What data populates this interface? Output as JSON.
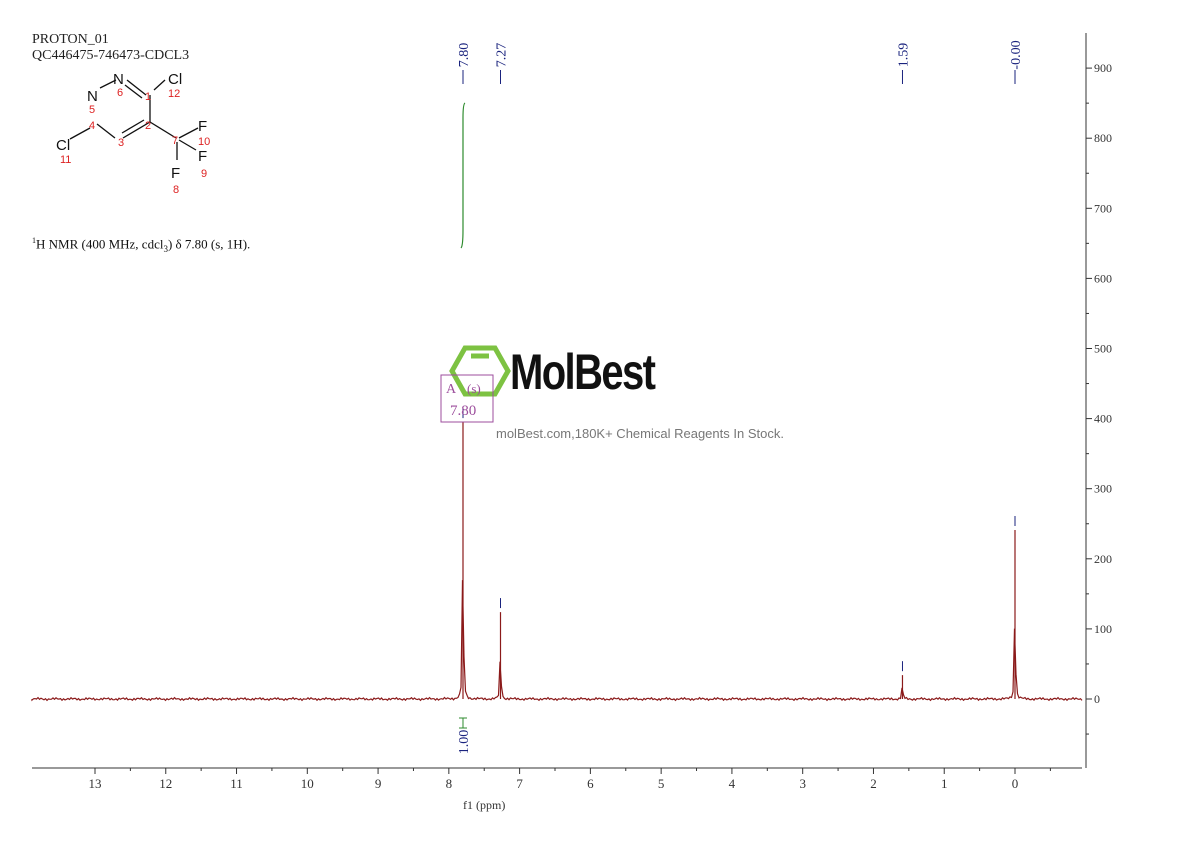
{
  "header": {
    "experiment": "PROTON_01",
    "sample": "QC446475-746473-CDCL3"
  },
  "structure": {
    "atoms": [
      "N",
      "N",
      "Cl",
      "Cl",
      "F",
      "F",
      "F"
    ],
    "numbers": [
      "1",
      "2",
      "3",
      "4",
      "5",
      "6",
      "7",
      "8",
      "9",
      "10",
      "11",
      "12"
    ]
  },
  "description": {
    "sup": "1",
    "text": "H NMR (400 MHz, cdcl",
    "sub": "3",
    "rest": ") δ 7.80 (s, 1H)."
  },
  "watermark": {
    "brand": "MolBest",
    "tagline": "molBest.com,180K+ Chemical Reagents In Stock.",
    "logo_color": "#7dc242"
  },
  "chart_data": {
    "type": "line",
    "xlabel": "f1 (ppm)",
    "xlim": [
      13.9,
      -0.95
    ],
    "ylim": [
      -98,
      950
    ],
    "xticks": [
      13,
      12,
      11,
      10,
      9,
      8,
      7,
      6,
      5,
      4,
      3,
      2,
      1,
      0
    ],
    "yticks": [
      900,
      800,
      700,
      600,
      500,
      400,
      300,
      200,
      100,
      0
    ],
    "peaks": [
      {
        "ppm": 7.8,
        "height": 395,
        "label": "7.80"
      },
      {
        "ppm": 7.27,
        "height": 124,
        "label": "7.27"
      },
      {
        "ppm": 1.59,
        "height": 34,
        "label": "1.59"
      },
      {
        "ppm": 0.0,
        "height": 241,
        "label": "-0.00"
      }
    ],
    "multiplet": {
      "name": "A",
      "type": "(s)",
      "shift": "7.80"
    },
    "integral": {
      "from": 7.85,
      "to": 7.75,
      "value": "1.00"
    },
    "colors": {
      "spectrum": "#8b1a1a",
      "labels": "#1a237e",
      "integral": "#2e8b2e",
      "multiplet": "#9c4d9c"
    }
  }
}
